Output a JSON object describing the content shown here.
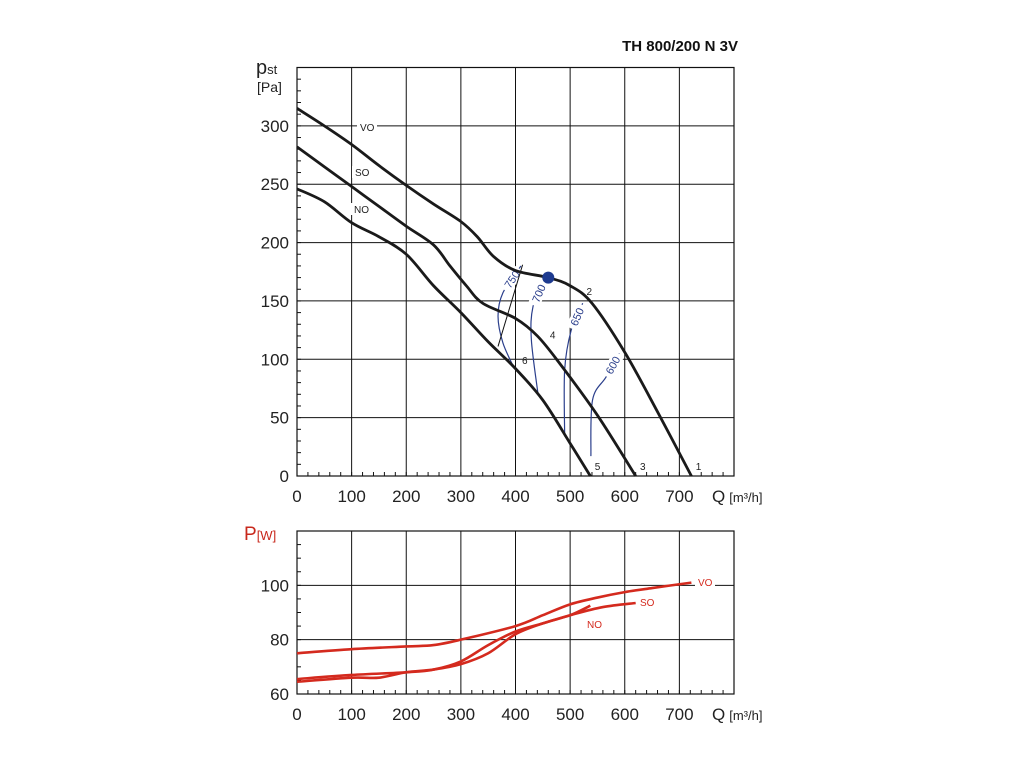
{
  "chart_data": [
    {
      "type": "line",
      "title": "TH 800/200 N 3V",
      "ylabel_main": "p",
      "ylabel_sub": "st",
      "yunit": "[Pa]",
      "xlabel": "Q",
      "xunit": "[m³/h]",
      "xlim": [
        0,
        800
      ],
      "ylim": [
        0,
        350
      ],
      "xticks": [
        0,
        100,
        200,
        300,
        400,
        500,
        600,
        700
      ],
      "yticks": [
        0,
        50,
        100,
        150,
        200,
        250,
        300
      ],
      "grid": true,
      "series": [
        {
          "name": "VO",
          "x": [
            0,
            50,
            100,
            150,
            200,
            250,
            300,
            330,
            360,
            400,
            460,
            500,
            540,
            600,
            660,
            722
          ],
          "y": [
            315,
            300,
            284,
            266,
            249,
            233,
            218,
            205,
            188,
            176,
            170,
            163,
            148,
            106,
            55,
            0
          ]
        },
        {
          "name": "SO",
          "x": [
            0,
            50,
            100,
            150,
            200,
            250,
            280,
            310,
            340,
            400,
            440,
            480,
            550,
            620
          ],
          "y": [
            282,
            265,
            248,
            231,
            214,
            198,
            180,
            163,
            148,
            135,
            120,
            97,
            52,
            0
          ]
        },
        {
          "name": "NO",
          "x": [
            0,
            50,
            100,
            150,
            200,
            250,
            300,
            350,
            400,
            450,
            500,
            537
          ],
          "y": [
            246,
            235,
            217,
            205,
            190,
            163,
            140,
            115,
            92,
            65,
            28,
            0
          ]
        }
      ],
      "rpm_lines": [
        {
          "label": "750",
          "x": [
            410,
            377,
            368,
            377,
            398
          ],
          "y": [
            180,
            157,
            137,
            114,
            92
          ]
        },
        {
          "label": "700",
          "x": [
            453,
            432,
            429,
            441
          ],
          "y": [
            168,
            145,
            117,
            71
          ]
        },
        {
          "label": "650",
          "x": [
            523,
            502,
            490,
            490
          ],
          "y": [
            148,
            125,
            91,
            34
          ]
        },
        {
          "label": "600",
          "x": [
            590,
            566,
            541,
            538
          ],
          "y": [
            105,
            85,
            65,
            17
          ]
        }
      ],
      "system_line": {
        "x": [
          368,
          413
        ],
        "y": [
          111,
          181
        ]
      },
      "point_labels": [
        {
          "label": "1",
          "x": 730,
          "y": 5
        },
        {
          "label": "2",
          "x": 530,
          "y": 155
        },
        {
          "label": "3",
          "x": 628,
          "y": 5
        },
        {
          "label": "4",
          "x": 463,
          "y": 118
        },
        {
          "label": "5",
          "x": 545,
          "y": 5
        },
        {
          "label": "6",
          "x": 412,
          "y": 96
        }
      ],
      "operating_point": {
        "x": 460,
        "y": 170
      },
      "colors": {
        "curves": "#1a1a1a",
        "rpm": "#2b3f8c",
        "point": "#1d3a8f"
      }
    },
    {
      "type": "line",
      "ylabel": "P",
      "yunit": "[W]",
      "xlabel": "Q",
      "xunit": "[m³/h]",
      "xlim": [
        0,
        800
      ],
      "ylim": [
        60,
        120
      ],
      "xticks": [
        0,
        100,
        200,
        300,
        400,
        500,
        600,
        700
      ],
      "yticks": [
        60,
        80,
        100
      ],
      "grid": true,
      "series": [
        {
          "name": "VO",
          "x": [
            0,
            100,
            200,
            250,
            300,
            400,
            450,
            500,
            550,
            600,
            650,
            722
          ],
          "y": [
            75,
            76.5,
            77.5,
            78,
            80,
            85,
            89,
            93,
            95.5,
            97.5,
            99,
            101
          ]
        },
        {
          "name": "SO",
          "x": [
            0,
            100,
            200,
            250,
            300,
            350,
            400,
            450,
            500,
            560,
            620
          ],
          "y": [
            65.5,
            67,
            68,
            69,
            72,
            78,
            83,
            86,
            89,
            92,
            93.5
          ]
        },
        {
          "name": "NO",
          "x": [
            0,
            100,
            150,
            200,
            250,
            300,
            350,
            400,
            450,
            500,
            537
          ],
          "y": [
            64.5,
            66,
            66,
            68,
            69,
            71,
            75,
            82,
            86,
            89,
            92.5
          ]
        }
      ],
      "colors": {
        "curves": "#d42a1e",
        "axis_text": "#c8281c"
      }
    }
  ]
}
